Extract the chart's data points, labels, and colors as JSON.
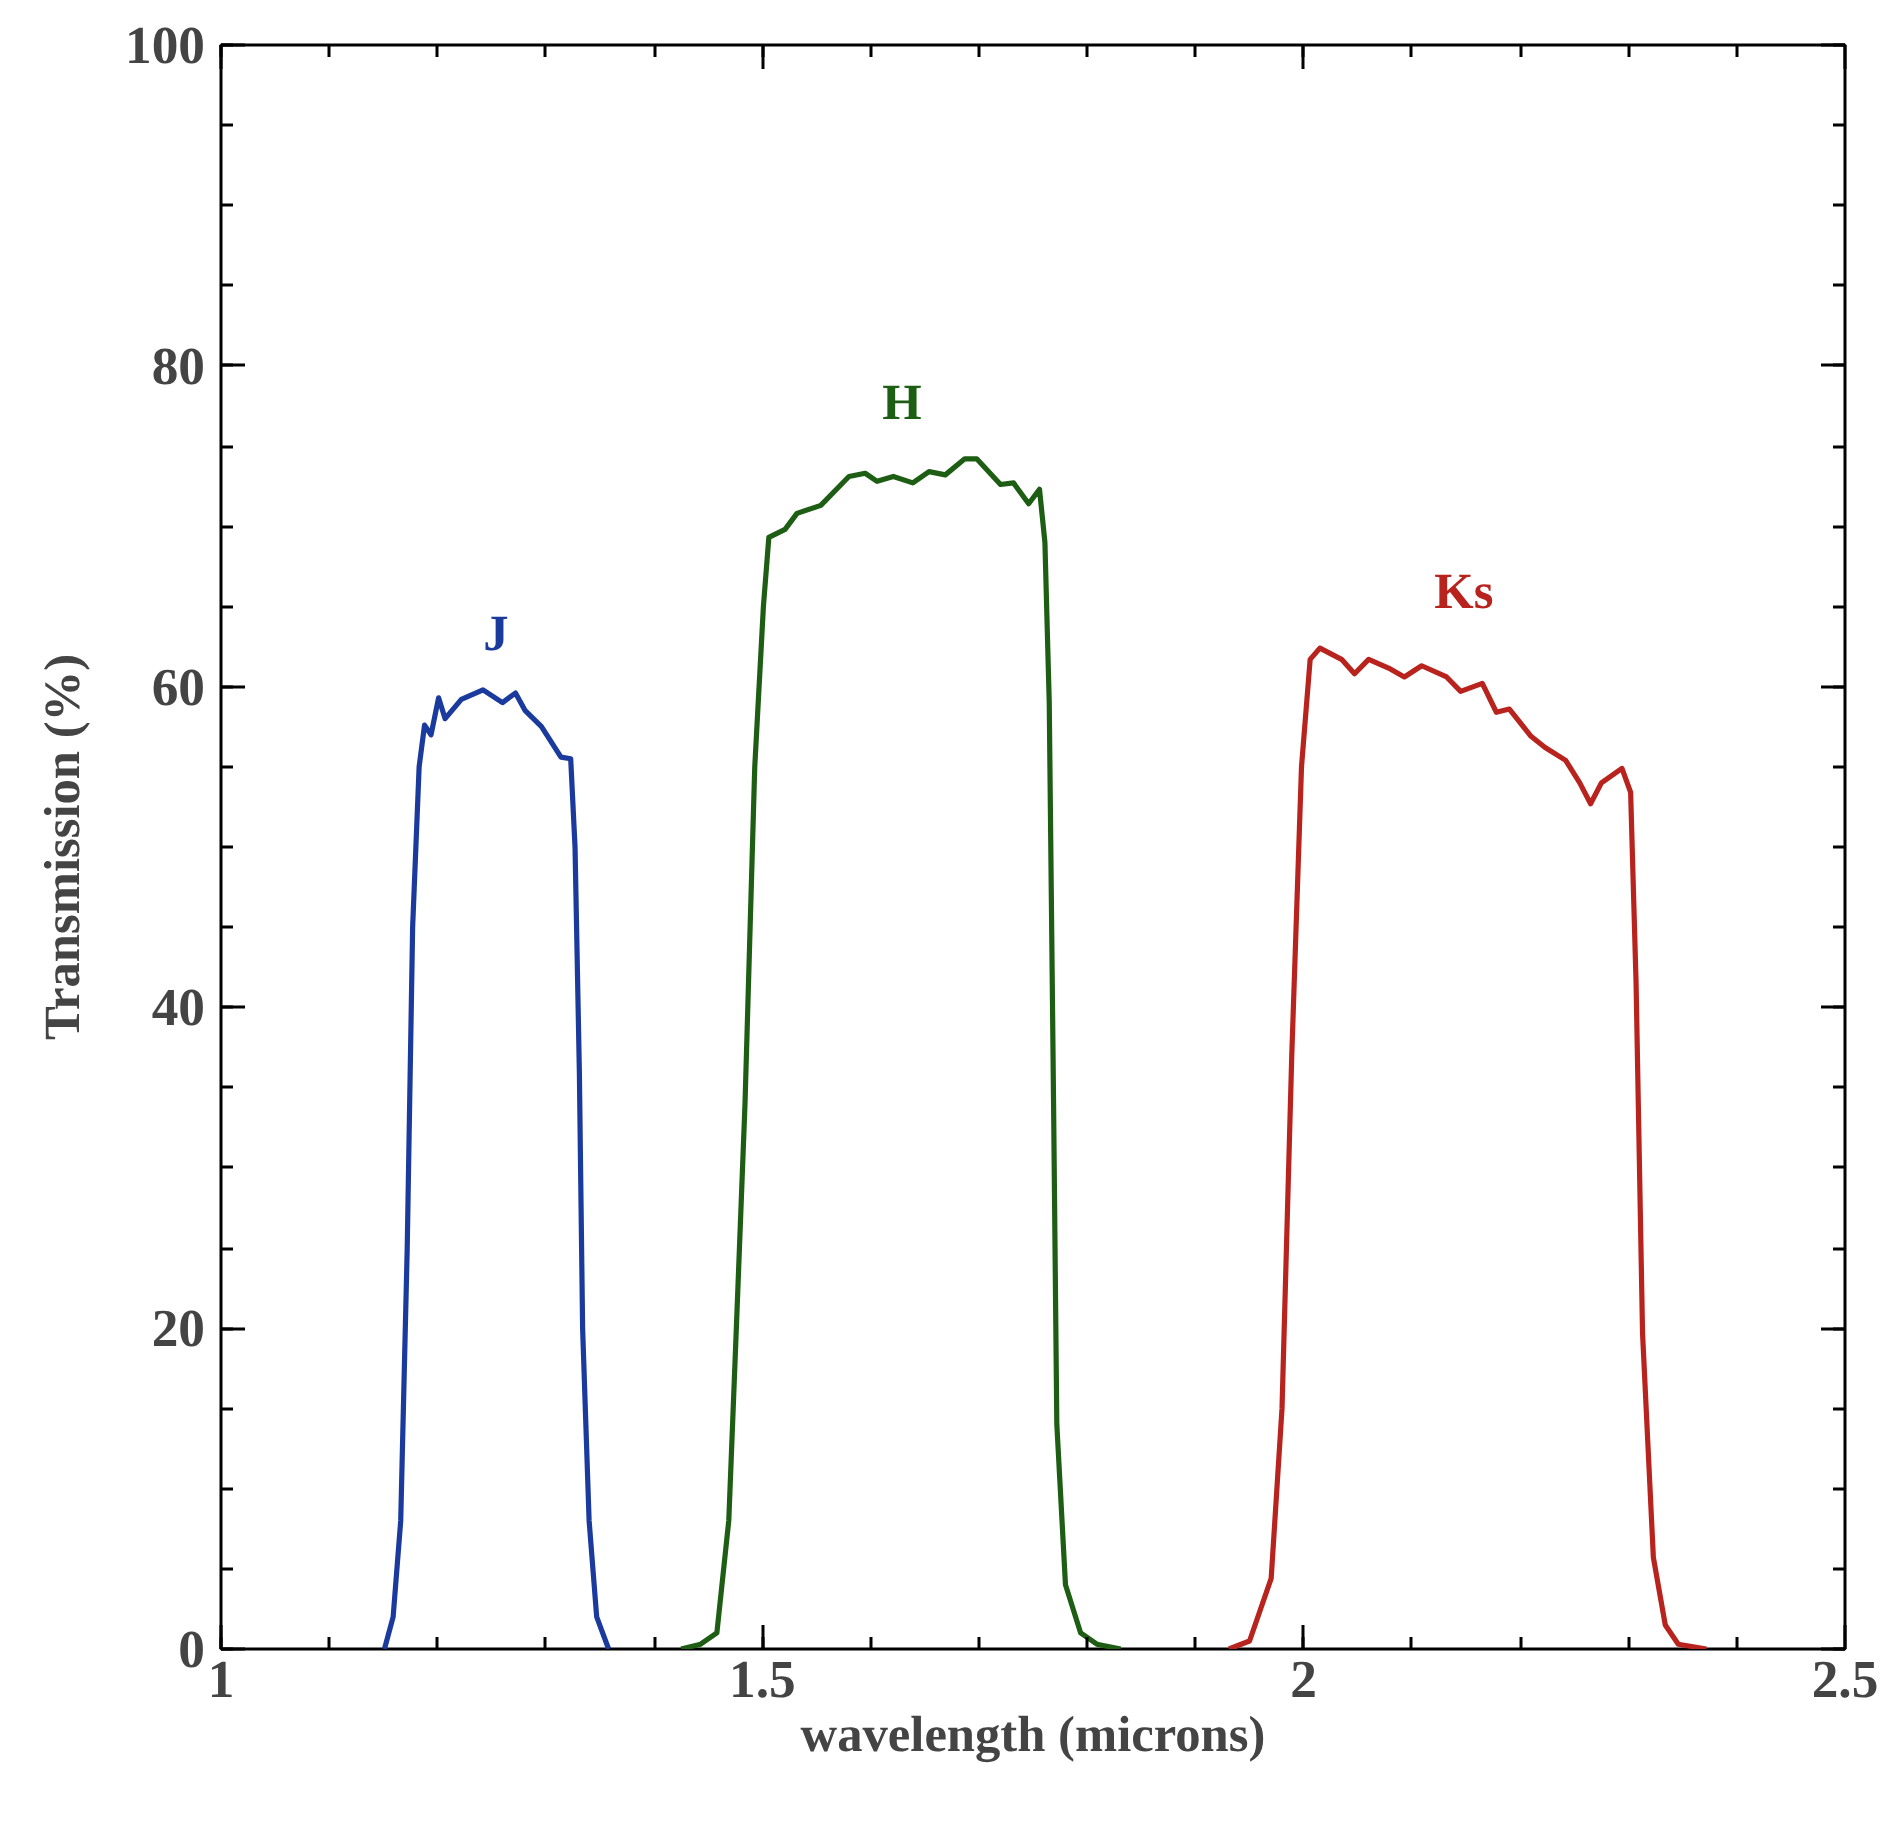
{
  "chart_data": {
    "type": "line",
    "xlabel": "wavelength (microns)",
    "ylabel": "Transmission (%)",
    "xlim": [
      1,
      2.5
    ],
    "ylim": [
      0,
      100
    ],
    "xticks": [
      1,
      1.5,
      2,
      2.5
    ],
    "yticks": [
      0,
      20,
      40,
      60,
      80,
      100
    ],
    "grid": false,
    "legend": false,
    "marker": "none",
    "line_style": "solid",
    "series": [
      {
        "name": "J",
        "color": "#1a3a9e",
        "x": [
          1.151,
          1.159,
          1.166,
          1.172,
          1.177,
          1.183,
          1.188,
          1.194,
          1.201,
          1.207,
          1.222,
          1.242,
          1.26,
          1.272,
          1.281,
          1.296,
          1.314,
          1.323,
          1.327,
          1.331,
          1.334,
          1.34,
          1.347,
          1.358
        ],
        "values": [
          0,
          2,
          8,
          25,
          45,
          55,
          57.6,
          57,
          59.3,
          58,
          59.2,
          59.8,
          59,
          59.6,
          58.5,
          57.5,
          55.6,
          55.5,
          50,
          36,
          20,
          8,
          2,
          0
        ]
      },
      {
        "name": "H",
        "color": "#1e5e14",
        "x": [
          1.425,
          1.443,
          1.458,
          1.469,
          1.476,
          1.484,
          1.493,
          1.501,
          1.506,
          1.521,
          1.532,
          1.554,
          1.58,
          1.595,
          1.606,
          1.621,
          1.639,
          1.654,
          1.669,
          1.687,
          1.698,
          1.72,
          1.732,
          1.746,
          1.756,
          1.761,
          1.765,
          1.769,
          1.772,
          1.78,
          1.794,
          1.809,
          1.831
        ],
        "values": [
          0,
          0.3,
          1,
          8,
          20,
          34,
          55,
          65,
          69.3,
          69.8,
          70.8,
          71.3,
          73.1,
          73.3,
          72.8,
          73.1,
          72.7,
          73.4,
          73.2,
          74.2,
          74.2,
          72.6,
          72.7,
          71.4,
          72.3,
          69,
          59,
          34,
          14,
          4,
          1,
          0.3,
          0
        ]
      },
      {
        "name": "Ks",
        "color": "#b8231e",
        "x": [
          1.931,
          1.95,
          1.97,
          1.98,
          1.989,
          1.998,
          2.006,
          2.015,
          2.035,
          2.047,
          2.06,
          2.08,
          2.093,
          2.109,
          2.132,
          2.145,
          2.165,
          2.178,
          2.19,
          2.21,
          2.223,
          2.242,
          2.255,
          2.265,
          2.275,
          2.294,
          2.302,
          2.307,
          2.313,
          2.323,
          2.334,
          2.346,
          2.372
        ],
        "values": [
          0,
          0.5,
          4.4,
          15,
          37,
          55,
          61.7,
          62.4,
          61.7,
          60.8,
          61.7,
          61.1,
          60.6,
          61.3,
          60.6,
          59.7,
          60.2,
          58.4,
          58.6,
          56.9,
          56.2,
          55.4,
          54,
          52.7,
          54,
          54.9,
          53.4,
          41.6,
          19.7,
          5.7,
          1.5,
          0.3,
          0
        ]
      }
    ]
  }
}
